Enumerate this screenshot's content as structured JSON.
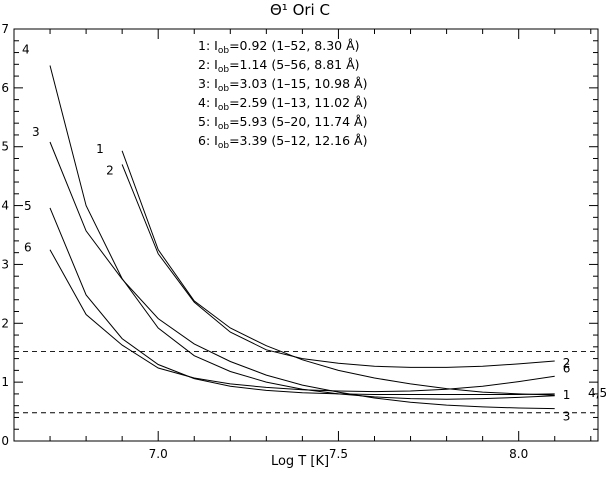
{
  "chart_data": {
    "type": "line",
    "title": "Θ¹ Ori C",
    "xlabel": "Log T [K]",
    "ylabel": "",
    "xlim": [
      6.6,
      8.22
    ],
    "ylim": [
      0,
      7
    ],
    "x_ticks": [
      "7.0",
      "7.5",
      "8.0"
    ],
    "y_ticks": [
      "0",
      "1",
      "2",
      "3",
      "4",
      "5",
      "6",
      "7"
    ],
    "grid": false,
    "reference_lines": [
      {
        "y": 1.52,
        "style": "dashed"
      },
      {
        "y": 0.48,
        "style": "dashed"
      }
    ],
    "legend": [
      "1: I_ob=0.92 (1-52, 8.30 Å)",
      "2: I_ob=1.14 (5-56, 8.81 Å)",
      "3: I_ob=3.03 (1-15, 10.98 Å)",
      "4: I_ob=2.59 (1-13, 11.02 Å)",
      "5: I_ob=5.93 (5-20, 11.74 Å)",
      "6: I_ob=3.39 (5-12, 12.16 Å)"
    ],
    "legend_rows": [
      {
        "num": "1: I",
        "sub": "ob",
        "rest": "=0.92 (1–52,  8.30 Å)"
      },
      {
        "num": "2: I",
        "sub": "ob",
        "rest": "=1.14 (5–56,  8.81 Å)"
      },
      {
        "num": "3: I",
        "sub": "ob",
        "rest": "=3.03 (1–15, 10.98 Å)"
      },
      {
        "num": "4: I",
        "sub": "ob",
        "rest": "=2.59 (1–13, 11.02 Å)"
      },
      {
        "num": "5: I",
        "sub": "ob",
        "rest": "=5.93 (5–20, 11.74 Å)"
      },
      {
        "num": "6: I",
        "sub": "ob",
        "rest": "=3.39 (5–12, 12.16 Å)"
      }
    ],
    "legend_placement": "top-center",
    "series": [
      {
        "name": "1",
        "label_start": "1",
        "label_end": "1",
        "x": [
          6.9,
          7.0,
          7.1,
          7.2,
          7.3,
          7.4,
          7.5,
          7.6,
          7.7,
          7.8,
          7.9,
          8.0,
          8.1
        ],
        "y": [
          4.93,
          3.25,
          2.38,
          1.92,
          1.62,
          1.38,
          1.2,
          1.07,
          0.97,
          0.89,
          0.83,
          0.8,
          0.78
        ]
      },
      {
        "name": "2",
        "label_start": "2",
        "label_end": "2",
        "x": [
          6.9,
          7.0,
          7.1,
          7.2,
          7.3,
          7.4,
          7.5,
          7.6,
          7.7,
          7.8,
          7.9,
          8.0,
          8.1
        ],
        "y": [
          4.7,
          3.18,
          2.36,
          1.85,
          1.55,
          1.4,
          1.32,
          1.27,
          1.25,
          1.25,
          1.27,
          1.31,
          1.36
        ]
      },
      {
        "name": "3",
        "label_start": "3",
        "label_end": "3",
        "x": [
          6.7,
          6.8,
          6.9,
          7.0,
          7.1,
          7.2,
          7.3,
          7.4,
          7.5,
          7.6,
          7.7,
          7.8,
          7.9,
          8.0,
          8.1
        ],
        "y": [
          5.08,
          3.57,
          2.75,
          2.08,
          1.65,
          1.35,
          1.12,
          0.95,
          0.83,
          0.73,
          0.66,
          0.61,
          0.58,
          0.56,
          0.55
        ]
      },
      {
        "name": "4",
        "label_start": "4",
        "label_end": "4",
        "x": [
          6.7,
          6.8,
          6.9,
          7.0,
          7.1,
          7.2,
          7.3,
          7.4,
          7.5,
          7.6,
          7.7,
          7.8,
          7.9,
          8.0,
          8.1
        ],
        "y": [
          6.38,
          4.0,
          2.76,
          1.92,
          1.45,
          1.18,
          1.0,
          0.88,
          0.8,
          0.75,
          0.72,
          0.71,
          0.72,
          0.74,
          0.77
        ]
      },
      {
        "name": "5",
        "label_start": "5",
        "label_end": "5",
        "x": [
          6.7,
          6.8,
          6.9,
          7.0,
          7.1,
          7.2,
          7.3,
          7.4,
          7.5,
          7.6,
          7.7,
          7.8,
          7.9,
          8.0,
          8.1
        ],
        "y": [
          3.96,
          2.48,
          1.74,
          1.3,
          1.06,
          0.93,
          0.86,
          0.82,
          0.8,
          0.79,
          0.79,
          0.79,
          0.79,
          0.79,
          0.8
        ]
      },
      {
        "name": "6",
        "label_start": "6",
        "label_end": "6",
        "x": [
          6.7,
          6.8,
          6.9,
          7.0,
          7.1,
          7.2,
          7.3,
          7.4,
          7.5,
          7.6,
          7.7,
          7.8,
          7.9,
          8.0,
          8.1
        ],
        "y": [
          3.25,
          2.15,
          1.63,
          1.24,
          1.07,
          0.97,
          0.91,
          0.87,
          0.85,
          0.84,
          0.85,
          0.88,
          0.93,
          1.01,
          1.1
        ]
      }
    ]
  },
  "extra_labels": {
    "right_edge": "4,5"
  }
}
